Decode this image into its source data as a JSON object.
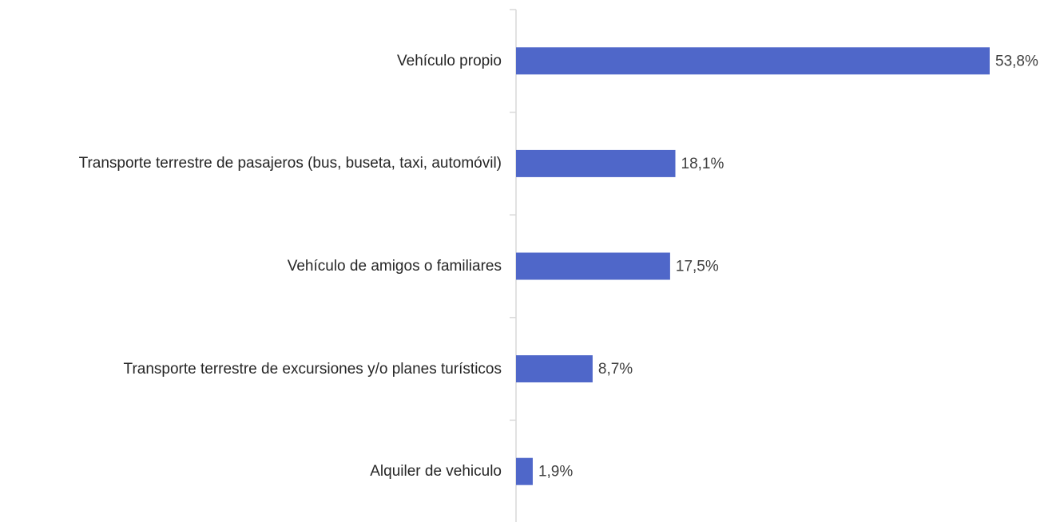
{
  "chart_data": {
    "type": "bar",
    "orientation": "horizontal",
    "categories": [
      "Vehículo propio",
      "Transporte terrestre de pasajeros (bus, buseta, taxi, automóvil)",
      "Vehículo de amigos o familiares",
      "Transporte terrestre de excursiones y/o planes turísticos",
      "Alquiler de vehiculo"
    ],
    "values": [
      53.8,
      18.1,
      17.5,
      8.7,
      1.9
    ],
    "value_labels": [
      "53,8%",
      "18,1%",
      "17,5%",
      "8,7%",
      "1,9%"
    ],
    "color": "#4f67c9"
  }
}
